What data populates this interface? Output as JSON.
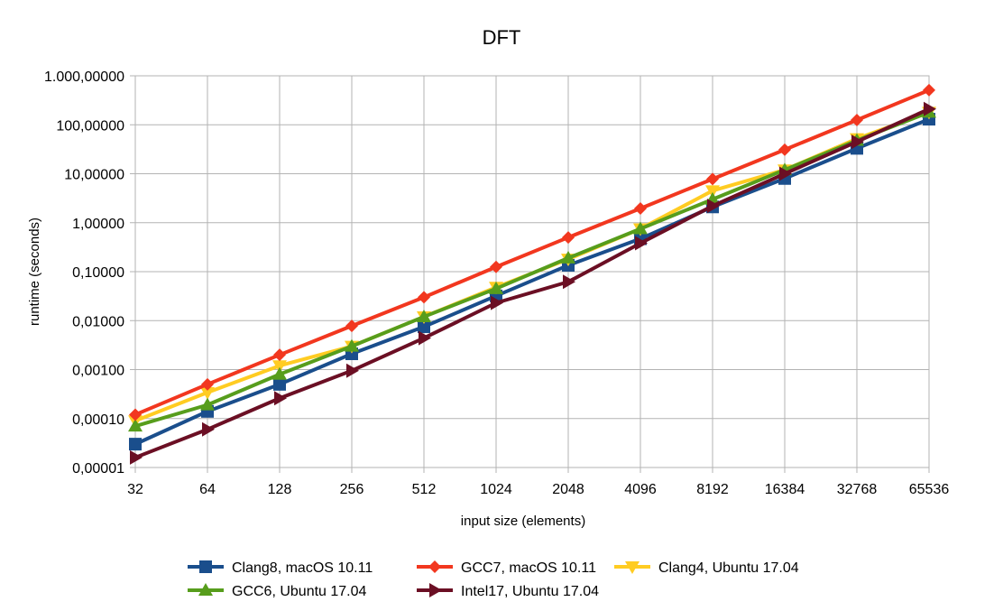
{
  "chart_data": {
    "type": "line",
    "title": "DFT",
    "xlabel": "input size (elements)",
    "ylabel": "runtime (seconds)",
    "yscale": "log",
    "ylim": [
      1e-05,
      1000
    ],
    "grid": true,
    "legend_position": "bottom",
    "categories": [
      "32",
      "64",
      "128",
      "256",
      "512",
      "1024",
      "2048",
      "4096",
      "8192",
      "16384",
      "32768",
      "65536"
    ],
    "y_ticks": [
      {
        "value": 1e-05,
        "label": "0,00001"
      },
      {
        "value": 0.0001,
        "label": "0,00010"
      },
      {
        "value": 0.001,
        "label": "0,00100"
      },
      {
        "value": 0.01,
        "label": "0,01000"
      },
      {
        "value": 0.1,
        "label": "0,10000"
      },
      {
        "value": 1,
        "label": "1,00000"
      },
      {
        "value": 10,
        "label": "10,00000"
      },
      {
        "value": 100,
        "label": "100,00000"
      },
      {
        "value": 1000,
        "label": "1.000,00000"
      }
    ],
    "series": [
      {
        "name": "Clang8, macOS 10.11",
        "color": "#1a4e8c",
        "marker": "square",
        "values": [
          3e-05,
          0.00014,
          0.0005,
          0.0021,
          0.0075,
          0.032,
          0.135,
          0.47,
          2.1,
          8.0,
          33,
          130
        ]
      },
      {
        "name": "GCC7, macOS 10.11",
        "color": "#f2371f",
        "marker": "diamond",
        "values": [
          0.00012,
          0.0005,
          0.002,
          0.0078,
          0.03,
          0.125,
          0.5,
          1.95,
          7.8,
          31,
          125,
          510
        ]
      },
      {
        "name": "Clang4, Ubuntu 17.04",
        "color": "#ffcc22",
        "marker": "triangle-down",
        "values": [
          9e-05,
          0.00034,
          0.0012,
          0.003,
          0.012,
          0.048,
          0.18,
          0.75,
          4.5,
          12,
          52,
          180
        ]
      },
      {
        "name": "GCC6, Ubuntu 17.04",
        "color": "#579d1c",
        "marker": "triangle-up",
        "values": [
          7e-05,
          0.00019,
          0.0008,
          0.003,
          0.012,
          0.045,
          0.19,
          0.75,
          3.0,
          12,
          48,
          180
        ]
      },
      {
        "name": "Intel17, Ubuntu 17.04",
        "color": "#6b0f24",
        "marker": "triangle-right",
        "values": [
          1.6e-05,
          6e-05,
          0.00026,
          0.00095,
          0.0044,
          0.023,
          0.062,
          0.38,
          2.2,
          10,
          45,
          210
        ]
      }
    ]
  }
}
